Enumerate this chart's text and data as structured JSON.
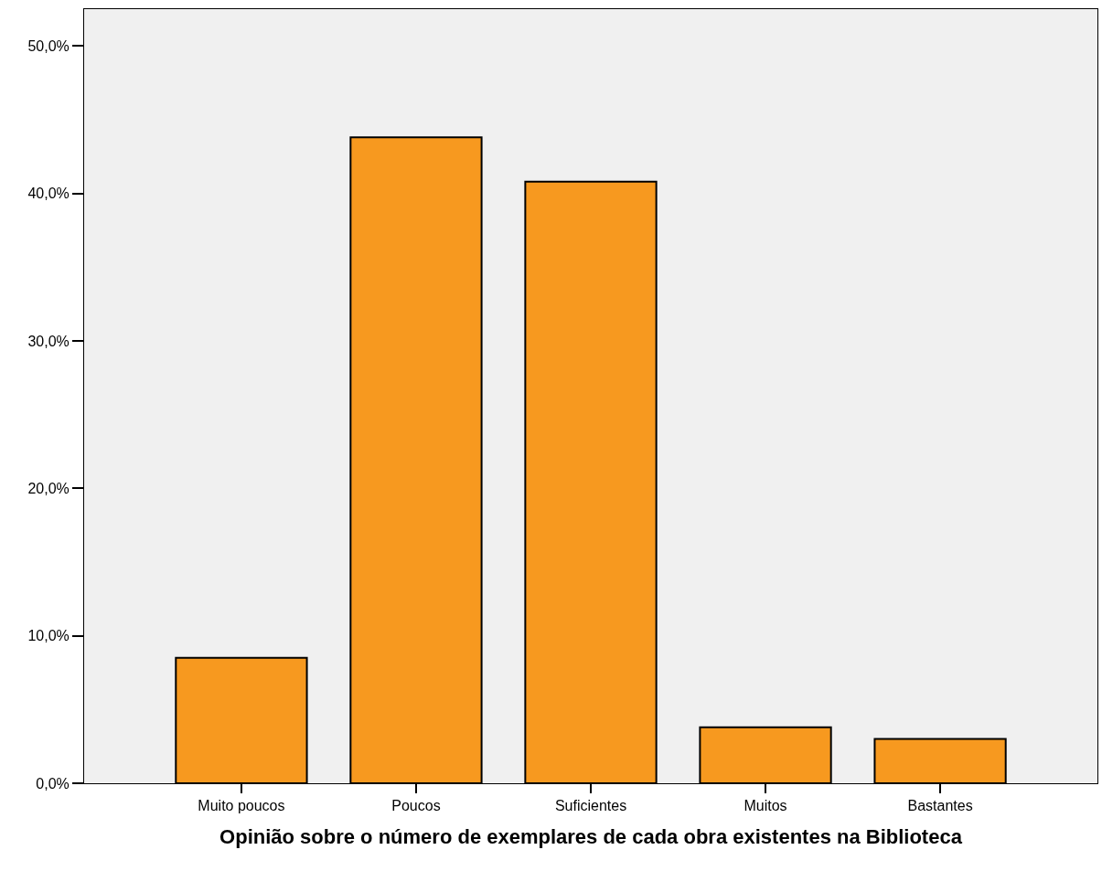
{
  "chart_data": {
    "type": "bar",
    "xlabel": "Opinião sobre o número de exemplares de cada obra existentes na Biblioteca",
    "categories": [
      "Muito poucos",
      "Poucos",
      "Suficientes",
      "Muitos",
      "Bastantes"
    ],
    "values": [
      8.5,
      43.8,
      40.8,
      3.8,
      3.0
    ],
    "color": "#f7991f",
    "ylim": [
      0,
      52.5
    ],
    "yticks": [
      {
        "value": 0,
        "label": "0,0%"
      },
      {
        "value": 10,
        "label": "10,0%"
      },
      {
        "value": 20,
        "label": "20,0%"
      },
      {
        "value": 30,
        "label": "30,0%"
      },
      {
        "value": 40,
        "label": "40,0%"
      },
      {
        "value": 50,
        "label": "50,0%"
      }
    ],
    "grid": false
  }
}
